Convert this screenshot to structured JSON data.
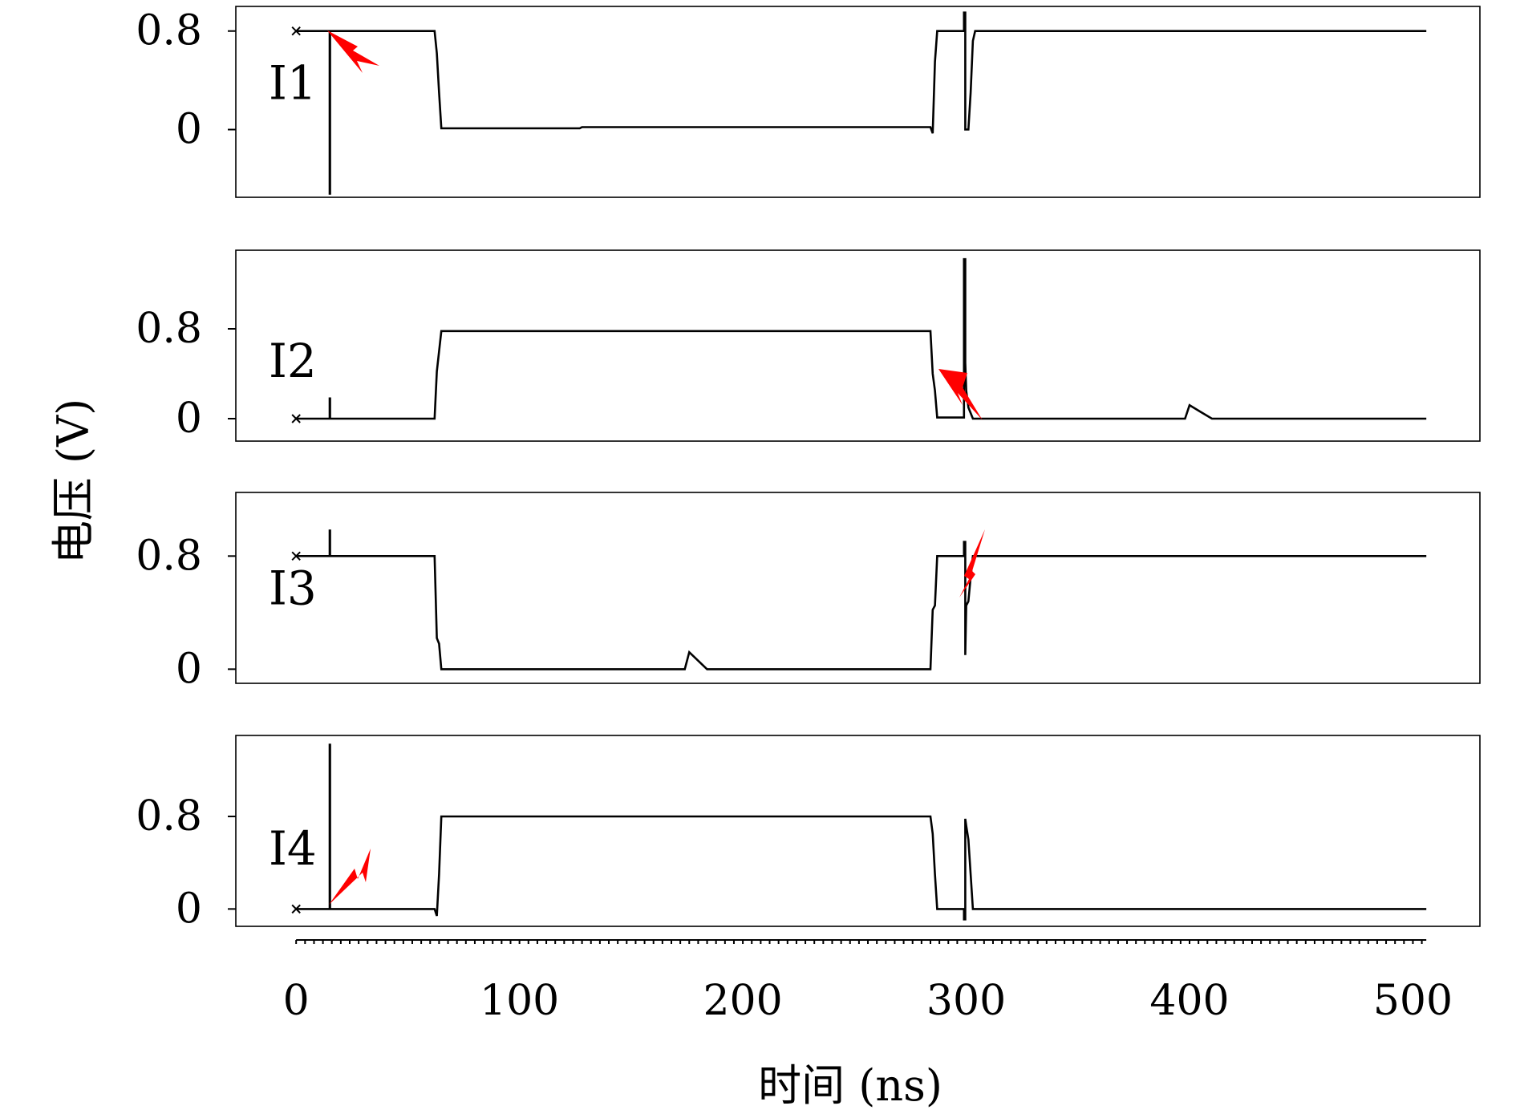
{
  "chart_data": [
    {
      "type": "line",
      "label": "I1",
      "ylim": [
        -0.55,
        1.0
      ],
      "y_ticks": [
        {
          "value": 0.8,
          "label": "0.8"
        },
        {
          "value": 0,
          "label": "0"
        }
      ],
      "series": [
        {
          "x": [
            0,
            15,
            15,
            15.2,
            15.2,
            62,
            63,
            64,
            65,
            127,
            128,
            284,
            285,
            286,
            287,
            299,
            299,
            299.6,
            299.6,
            301,
            302,
            303,
            304,
            506
          ],
          "y": [
            0.8,
            0.8,
            -0.52,
            -0.52,
            0.8,
            0.8,
            0.62,
            0.3,
            0.01,
            0.01,
            0.02,
            0.02,
            -0.03,
            0.55,
            0.8,
            0.8,
            0.95,
            0.95,
            0.0,
            0.0,
            0.3,
            0.72,
            0.8,
            0.8
          ]
        }
      ]
    },
    {
      "type": "line",
      "label": "I2",
      "ylim": [
        -0.2,
        1.5
      ],
      "y_ticks": [
        {
          "value": 0.8,
          "label": "0.8"
        },
        {
          "value": 0,
          "label": "0"
        }
      ],
      "series": [
        {
          "x": [
            0,
            15,
            15,
            15.2,
            15.2,
            62,
            63,
            65,
            284,
            285,
            286,
            287,
            299,
            299,
            299.6,
            299.6,
            300,
            301,
            302,
            303,
            398,
            400,
            405,
            410,
            506
          ],
          "y": [
            0,
            0,
            0.18,
            0.18,
            0,
            0,
            0.42,
            0.78,
            0.78,
            0.4,
            0.25,
            0.01,
            0.01,
            1.42,
            1.42,
            0.5,
            0.25,
            0.1,
            0.05,
            0,
            0,
            0.12,
            0.06,
            0,
            0
          ]
        }
      ]
    },
    {
      "type": "line",
      "label": "I3",
      "ylim": [
        -0.1,
        1.25
      ],
      "y_ticks": [
        {
          "value": 0.8,
          "label": "0.8"
        },
        {
          "value": 0,
          "label": "0"
        }
      ],
      "series": [
        {
          "x": [
            0,
            15,
            15,
            15.2,
            15.2,
            62,
            63,
            64,
            65,
            174,
            176,
            180,
            184,
            284,
            285,
            286,
            287,
            299,
            299,
            299.6,
            299.6,
            300,
            301,
            302,
            303,
            506
          ],
          "y": [
            0.8,
            0.8,
            0.98,
            0.98,
            0.8,
            0.8,
            0.22,
            0.18,
            0,
            0,
            0.12,
            0.06,
            0,
            0,
            0.42,
            0.45,
            0.8,
            0.8,
            0.9,
            0.9,
            0.1,
            0.45,
            0.48,
            0.65,
            0.8,
            0.8
          ]
        }
      ]
    },
    {
      "type": "line",
      "label": "I4",
      "ylim": [
        -0.15,
        1.5
      ],
      "y_ticks": [
        {
          "value": 0.8,
          "label": "0.8"
        },
        {
          "value": 0,
          "label": "0"
        }
      ],
      "series": [
        {
          "x": [
            0,
            15,
            15,
            15.2,
            15.2,
            62,
            63,
            64,
            65,
            284,
            285,
            286,
            287,
            299,
            299,
            299.6,
            299.6,
            300,
            301,
            302,
            303,
            506
          ],
          "y": [
            0,
            0,
            1.42,
            1.42,
            0,
            0,
            -0.06,
            0.3,
            0.8,
            0.8,
            0.65,
            0.3,
            0,
            0,
            -0.09,
            -0.09,
            0.78,
            0.72,
            0.6,
            0.3,
            0,
            0
          ]
        }
      ]
    }
  ],
  "x_axis": {
    "xlim": [
      -27,
      530
    ],
    "ticks": [
      {
        "value": 0,
        "label": "0"
      },
      {
        "value": 100,
        "label": "100"
      },
      {
        "value": 200,
        "label": "200"
      },
      {
        "value": 300,
        "label": "300"
      },
      {
        "value": 400,
        "label": "400"
      },
      {
        "value": 500,
        "label": "500"
      }
    ]
  },
  "xlabel": "时间 (ns)",
  "ylabel": "电压 (V)",
  "grid": false,
  "colors": {
    "trace": "#000000",
    "fault_marker": "#ff0000"
  }
}
